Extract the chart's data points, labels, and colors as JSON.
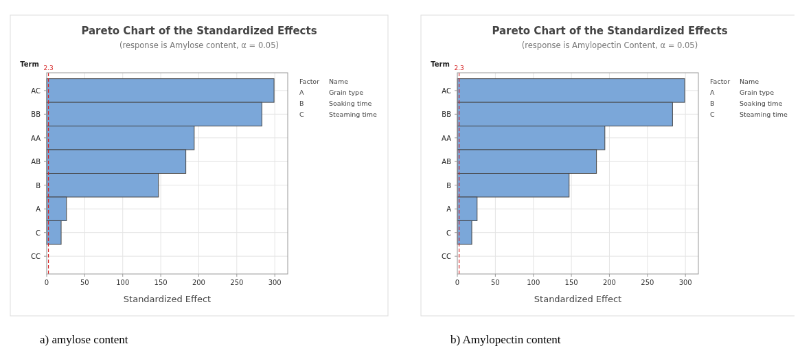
{
  "chart_data": [
    {
      "type": "bar",
      "orientation": "horizontal",
      "title": "Pareto Chart of the Standardized Effects",
      "subtitle": "(response is Amylose content, α = 0.05)",
      "xlabel": "Standardized Effect",
      "ylabel": "Term",
      "categories": [
        "AC",
        "BB",
        "AA",
        "AB",
        "B",
        "A",
        "C",
        "CC"
      ],
      "values": [
        299,
        283,
        194,
        183,
        147,
        26,
        19,
        null
      ],
      "color": "#7ba7d9",
      "xlim": [
        0,
        317
      ],
      "xticks": [
        0,
        50,
        100,
        150,
        200,
        250,
        300
      ],
      "grid": true,
      "ref_lines": [
        {
          "axis": "x",
          "value": 2.3,
          "label": "2.3",
          "color": "#d62728",
          "line_style": "dashed"
        }
      ],
      "annotations": [
        "Factor",
        "Name",
        "A",
        "Grain type",
        "B",
        "Soaking time",
        "C",
        "Steaming time",
        "a) amylose content"
      ]
    },
    {
      "type": "bar",
      "orientation": "horizontal",
      "title": "Pareto Chart of the Standardized Effects",
      "subtitle": "(response is Amylopectin Content, α = 0.05)",
      "xlabel": "Standardized Effect",
      "ylabel": "Term",
      "categories": [
        "AC",
        "BB",
        "AA",
        "AB",
        "B",
        "A",
        "C",
        "CC"
      ],
      "values": [
        299,
        283,
        194,
        183,
        147,
        26,
        19,
        null
      ],
      "color": "#7ba7d9",
      "xlim": [
        0,
        317
      ],
      "xticks": [
        0,
        50,
        100,
        150,
        200,
        250,
        300
      ],
      "grid": true,
      "ref_lines": [
        {
          "axis": "x",
          "value": 2.3,
          "label": "2.3",
          "color": "#d62728",
          "line_style": "dashed"
        }
      ],
      "annotations": [
        "Factor",
        "Name",
        "A",
        "Grain type",
        "B",
        "Soaking time",
        "C",
        "Steaming time",
        "b) Amylopectin content"
      ]
    }
  ]
}
